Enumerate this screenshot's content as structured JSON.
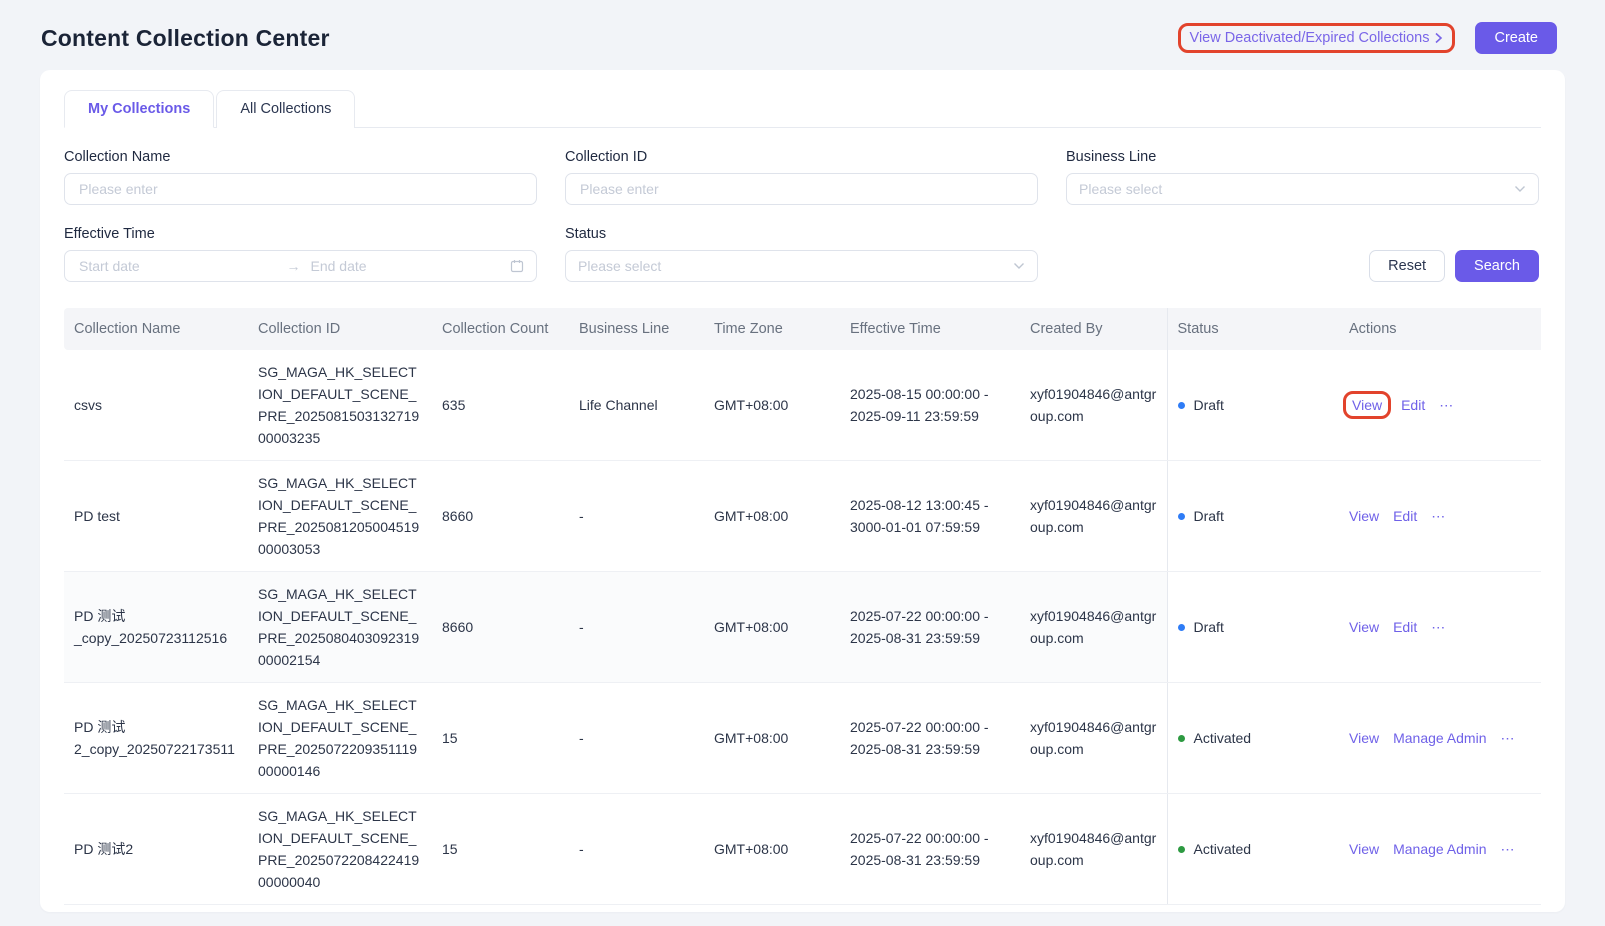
{
  "page": {
    "title": "Content Collection Center",
    "deactivated_link_label": "View Deactivated/Expired Collections",
    "create_button": "Create"
  },
  "tabs": [
    {
      "label": "My Collections",
      "active": true
    },
    {
      "label": "All Collections",
      "active": false
    }
  ],
  "filters": {
    "collection_name": {
      "label": "Collection Name",
      "placeholder": "Please enter"
    },
    "collection_id": {
      "label": "Collection ID",
      "placeholder": "Please enter"
    },
    "business_line": {
      "label": "Business Line",
      "placeholder": "Please select"
    },
    "effective_time": {
      "label": "Effective Time",
      "start_placeholder": "Start date",
      "end_placeholder": "End date"
    },
    "status": {
      "label": "Status",
      "placeholder": "Please select"
    },
    "reset_button": "Reset",
    "search_button": "Search"
  },
  "table": {
    "columns": [
      "Collection Name",
      "Collection ID",
      "Collection Count",
      "Business Line",
      "Time Zone",
      "Effective Time",
      "Created By",
      "Status",
      "Actions"
    ],
    "rows": [
      {
        "name": "csvs",
        "id": "SG_MAGA_HK_SELECTION_DEFAULT_SCENE_PRE_202508150313271900003235",
        "count": "635",
        "business_line": "Life Channel",
        "time_zone": "GMT+08:00",
        "effective_time": "2025-08-15 00:00:00 - 2025-09-11 23:59:59",
        "created_by": "xyf01904846@antgroup.com",
        "status": "Draft",
        "status_color": "#2e7cf6",
        "shaded": false,
        "actions": [
          {
            "label": "View",
            "annotated": true
          },
          {
            "label": "Edit"
          },
          {
            "kind": "more"
          }
        ]
      },
      {
        "name": "PD test",
        "id": "SG_MAGA_HK_SELECTION_DEFAULT_SCENE_PRE_202508120500451900003053",
        "count": "8660",
        "business_line": "-",
        "time_zone": "GMT+08:00",
        "effective_time": "2025-08-12 13:00:45 - 3000-01-01 07:59:59",
        "created_by": "xyf01904846@antgroup.com",
        "status": "Draft",
        "status_color": "#2e7cf6",
        "shaded": false,
        "actions": [
          {
            "label": "View"
          },
          {
            "label": "Edit"
          },
          {
            "kind": "more"
          }
        ]
      },
      {
        "name": "PD 测试_copy_20250723112516",
        "id": "SG_MAGA_HK_SELECTION_DEFAULT_SCENE_PRE_202508040309231900002154",
        "count": "8660",
        "business_line": "-",
        "time_zone": "GMT+08:00",
        "effective_time": "2025-07-22 00:00:00 - 2025-08-31 23:59:59",
        "created_by": "xyf01904846@antgroup.com",
        "status": "Draft",
        "status_color": "#2e7cf6",
        "shaded": true,
        "actions": [
          {
            "label": "View"
          },
          {
            "label": "Edit"
          },
          {
            "kind": "more"
          }
        ]
      },
      {
        "name": "PD 测试2_copy_20250722173511",
        "id": "SG_MAGA_HK_SELECTION_DEFAULT_SCENE_PRE_202507220935111900000146",
        "count": "15",
        "business_line": "-",
        "time_zone": "GMT+08:00",
        "effective_time": "2025-07-22 00:00:00 - 2025-08-31 23:59:59",
        "created_by": "xyf01904846@antgroup.com",
        "status": "Activated",
        "status_color": "#2d9a41",
        "shaded": false,
        "actions": [
          {
            "label": "View"
          },
          {
            "label": "Manage Admin"
          },
          {
            "kind": "more"
          }
        ]
      },
      {
        "name": "PD 测试2",
        "id": "SG_MAGA_HK_SELECTION_DEFAULT_SCENE_PRE_202507220842241900000040",
        "count": "15",
        "business_line": "-",
        "time_zone": "GMT+08:00",
        "effective_time": "2025-07-22 00:00:00 - 2025-08-31 23:59:59",
        "created_by": "xyf01904846@antgroup.com",
        "status": "Activated",
        "status_color": "#2d9a41",
        "shaded": false,
        "actions": [
          {
            "label": "View"
          },
          {
            "label": "Manage Admin"
          },
          {
            "kind": "more"
          }
        ]
      }
    ]
  },
  "icons": {
    "more": "⋯",
    "range_arrow": "→"
  },
  "colors": {
    "accent": "#6a5ae8",
    "annotation": "#e2432c",
    "draft_dot": "#2e7cf6",
    "activated_dot": "#2d9a41"
  }
}
